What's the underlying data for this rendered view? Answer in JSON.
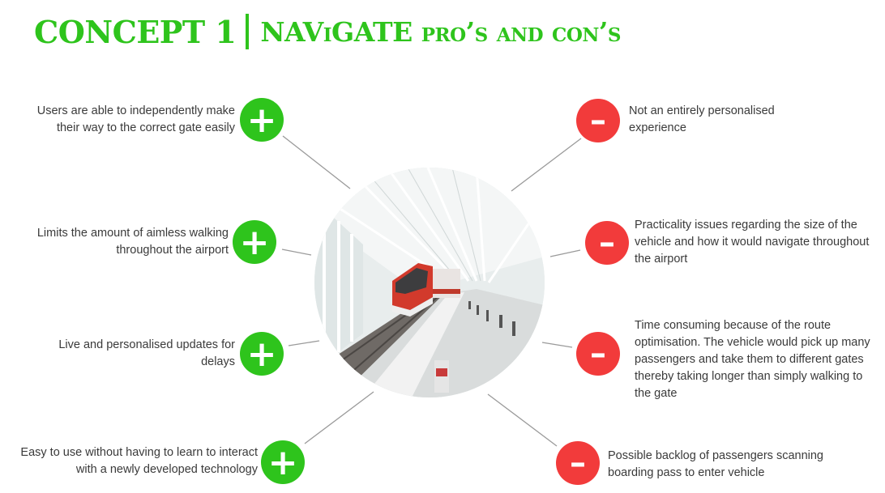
{
  "title": {
    "main": "CONCEPT 1",
    "subtitle": "NAViGATE pro’s and con’s"
  },
  "colors": {
    "pro": "#2ec41c",
    "con": "#f23b3b",
    "text": "#3a3a3a",
    "connector": "#9a9a9a"
  },
  "center_image": {
    "icon": "airport-train-photo"
  },
  "pros": [
    {
      "text": "Users are able to independently make their way to the correct gate easily",
      "symbol": "+",
      "icon": "plus-icon"
    },
    {
      "text": "Limits the amount of aimless walking throughout the airport",
      "symbol": "+",
      "icon": "plus-icon"
    },
    {
      "text": "Live and personalised updates for delays",
      "symbol": "+",
      "icon": "plus-icon"
    },
    {
      "text": "Easy to use without having to learn to interact with a newly developed technology",
      "symbol": "+",
      "icon": "plus-icon"
    }
  ],
  "cons": [
    {
      "text": "Not an entirely personalised experience",
      "symbol": "–",
      "icon": "minus-icon"
    },
    {
      "text": "Practicality issues regarding the size of the vehicle and how it would navigate throughout the airport",
      "symbol": "–",
      "icon": "minus-icon"
    },
    {
      "text": "Time consuming because of the route optimisation. The vehicle would pick up many passengers and take them to different gates thereby taking longer than simply walking to the gate",
      "symbol": "–",
      "icon": "minus-icon"
    },
    {
      "text": "Possible backlog of passengers scanning boarding pass to enter vehicle",
      "symbol": "–",
      "icon": "minus-icon"
    }
  ]
}
